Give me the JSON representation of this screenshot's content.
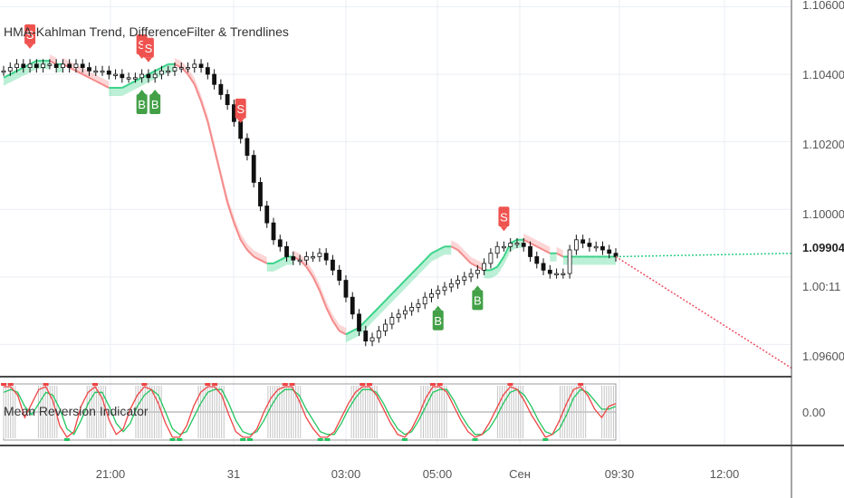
{
  "main_title": "HMA-Kahlman Trend, DifferenceFilter & Trendlines",
  "indicator_title": "Mean Reversion Indicator",
  "colors": {
    "bg": "#ffffff",
    "grid": "#e9eef3",
    "axis_border": "#4a4a4a",
    "candle": "#111111",
    "trend_red": "#f58a8a",
    "trend_green": "#3cd38a",
    "sell_badge": "#ef5350",
    "buy_badge": "#43a047",
    "proj_red": "#ee4f62",
    "proj_green": "#2fcf86",
    "ind_red": "#ef4444",
    "ind_green": "#22c55e",
    "ind_hist": "#c4c4c4"
  },
  "price_axis": {
    "ticks": [
      "1.10600",
      "1.10400",
      "1.10200",
      "1.10000",
      "1.09600"
    ],
    "last_price": "1.09904",
    "countdown": "1.00:11",
    "indicator_tick": "0.00"
  },
  "time_axis": {
    "labels": [
      "21:00",
      "31",
      "03:00",
      "05:00",
      "Сен",
      "09:30",
      "12:00"
    ]
  },
  "chart_data": {
    "type": "line",
    "title": "HMA-Kahlman Trend, DifferenceFilter & Trendlines",
    "ylim": [
      1.0955,
      1.1066
    ],
    "x_labels": [
      "21:00",
      "31",
      "03:00",
      "05:00",
      "Сен",
      "09:30",
      "12:00"
    ],
    "close": [
      1.1045,
      1.1046,
      1.1047,
      1.1046,
      1.1047,
      1.1046,
      1.1047,
      1.1047,
      1.1046,
      1.1047,
      1.1046,
      1.1047,
      1.1046,
      1.1045,
      1.1045,
      1.1045,
      1.1044,
      1.1044,
      1.1043,
      1.1043,
      1.1043,
      1.1044,
      1.1043,
      1.1044,
      1.1045,
      1.1045,
      1.1046,
      1.1046,
      1.1046,
      1.1047,
      1.1046,
      1.1044,
      1.1041,
      1.1038,
      1.1035,
      1.103,
      1.1025,
      1.102,
      1.1012,
      1.1005,
      1.1,
      1.0995,
      1.0993,
      1.099,
      1.0989,
      1.0989,
      1.099,
      1.099,
      1.0991,
      1.0989,
      1.0986,
      1.0983,
      1.0978,
      1.0973,
      1.0968,
      1.0965,
      1.0966,
      1.0968,
      1.097,
      1.0972,
      1.0973,
      1.0974,
      1.0975,
      1.0976,
      1.0978,
      1.0979,
      1.098,
      1.0981,
      1.0982,
      1.0983,
      1.0984,
      1.0985,
      1.0986,
      1.0988,
      1.0991,
      1.0993,
      1.0993,
      1.0994,
      1.0994,
      1.0993,
      1.099,
      1.0988,
      1.0986,
      1.0985,
      1.0985,
      1.0985,
      1.0992,
      1.0995,
      1.0994,
      1.0993,
      1.0993,
      1.0992,
      1.0991,
      1.099
    ],
    "series": [
      {
        "name": "HMA-Kahlman Trend",
        "values": [
          1.1043,
          1.1044,
          1.1045,
          1.1046,
          1.1047,
          1.1048,
          1.1048,
          1.1048,
          1.1047,
          1.1047,
          1.1046,
          1.1045,
          1.1044,
          1.1043,
          1.1042,
          1.1041,
          1.104,
          1.104,
          1.104,
          1.1041,
          1.1042,
          1.1043,
          1.1044,
          1.1045,
          1.1046,
          1.1047,
          1.1047,
          1.1046,
          1.1044,
          1.1041,
          1.1036,
          1.103,
          1.1022,
          1.1014,
          1.1006,
          1.1,
          1.0995,
          1.0992,
          1.099,
          1.0989,
          1.0988,
          1.0988,
          1.0989,
          1.099,
          1.099,
          1.0989,
          1.0987,
          1.0984,
          1.098,
          1.0975,
          1.0971,
          1.0968,
          1.0967,
          1.0968,
          1.0969,
          1.0971,
          1.0973,
          1.0975,
          1.0977,
          1.0979,
          1.0981,
          1.0983,
          1.0985,
          1.0987,
          1.0989,
          1.0991,
          1.0992,
          1.0993,
          1.0993,
          1.0992,
          1.099,
          1.0988,
          1.0987,
          1.0986,
          1.0986,
          1.0987,
          1.099,
          1.0994,
          1.0995,
          1.0995,
          1.0994,
          1.0993,
          1.0992,
          1.0991,
          1.0991,
          1.099,
          1.099,
          1.099,
          1.099,
          1.099,
          1.099,
          1.099,
          1.099,
          1.099
        ]
      }
    ],
    "projection": {
      "green": {
        "from": 1.099,
        "to": 1.0991
      },
      "red": {
        "from": 1.099,
        "to": 1.0957
      }
    },
    "signals": [
      {
        "label": "S",
        "bar": 4
      },
      {
        "label": "S",
        "bar": 21
      },
      {
        "label": "S",
        "bar": 22
      },
      {
        "label": "B",
        "bar": 21
      },
      {
        "label": "B",
        "bar": 23
      },
      {
        "label": "S",
        "bar": 36
      },
      {
        "label": "B",
        "bar": 66
      },
      {
        "label": "B",
        "bar": 72
      },
      {
        "label": "S",
        "bar": 76
      }
    ],
    "indicator": {
      "title": "Mean Reversion Indicator",
      "ylim": [
        -1,
        1
      ],
      "red": [
        0.9,
        0.9,
        0.6,
        -0.2,
        0.3,
        0.8,
        0.9,
        0.4,
        -0.5,
        -0.9,
        -0.7,
        0.2,
        0.7,
        0.9,
        0.5,
        -0.3,
        -0.8,
        -0.6,
        0.1,
        0.6,
        0.9,
        0.8,
        0.3,
        -0.4,
        -0.9,
        -0.9,
        -0.5,
        0.2,
        0.7,
        0.9,
        0.9,
        0.6,
        -0.1,
        -0.7,
        -0.9,
        -0.9,
        -0.6,
        0.0,
        0.5,
        0.8,
        0.9,
        0.9,
        0.4,
        -0.2,
        -0.6,
        -0.9,
        -0.9,
        -0.7,
        -0.2,
        0.3,
        0.7,
        0.9,
        0.9,
        0.6,
        0.1,
        -0.4,
        -0.8,
        -0.9,
        -0.6,
        -0.1,
        0.5,
        0.9,
        0.9,
        0.7,
        0.2,
        -0.3,
        -0.7,
        -0.9,
        -0.8,
        -0.4,
        0.1,
        0.6,
        0.9,
        0.8,
        0.4,
        -0.1,
        -0.5,
        -0.9,
        -0.8,
        -0.3,
        0.3,
        0.8,
        0.9,
        0.6,
        0.1,
        -0.2,
        0.2,
        0.3
      ],
      "green": [
        0.7,
        0.8,
        0.7,
        0.2,
        -0.1,
        0.3,
        0.7,
        0.6,
        0.1,
        -0.6,
        -0.8,
        -0.3,
        0.3,
        0.7,
        0.7,
        0.2,
        -0.4,
        -0.7,
        -0.4,
        0.2,
        0.6,
        0.8,
        0.6,
        0.0,
        -0.6,
        -0.8,
        -0.7,
        -0.2,
        0.3,
        0.7,
        0.8,
        0.8,
        0.3,
        -0.3,
        -0.7,
        -0.8,
        -0.7,
        -0.3,
        0.2,
        0.6,
        0.8,
        0.8,
        0.6,
        0.1,
        -0.3,
        -0.7,
        -0.8,
        -0.8,
        -0.4,
        0.1,
        0.5,
        0.8,
        0.8,
        0.7,
        0.3,
        -0.2,
        -0.6,
        -0.8,
        -0.7,
        -0.3,
        0.2,
        0.7,
        0.8,
        0.8,
        0.4,
        -0.1,
        -0.5,
        -0.8,
        -0.8,
        -0.6,
        -0.2,
        0.3,
        0.7,
        0.8,
        0.6,
        0.2,
        -0.3,
        -0.7,
        -0.8,
        -0.6,
        -0.1,
        0.5,
        0.8,
        0.7,
        0.4,
        0.1,
        0.1,
        0.2
      ],
      "histogram": [
        1,
        1,
        0,
        0,
        0,
        1,
        1,
        1,
        0,
        0,
        0,
        0,
        1,
        1,
        1,
        0,
        0,
        0,
        0,
        1,
        1,
        1,
        1,
        0,
        0,
        0,
        0,
        0,
        1,
        1,
        1,
        1,
        0,
        0,
        0,
        0,
        0,
        0,
        1,
        1,
        1,
        1,
        1,
        0,
        0,
        0,
        0,
        0,
        0,
        0,
        1,
        1,
        1,
        1,
        0,
        0,
        0,
        0,
        0,
        0,
        1,
        1,
        1,
        1,
        0,
        0,
        0,
        0,
        0,
        0,
        0,
        1,
        1,
        1,
        1,
        0,
        0,
        0,
        0,
        0,
        1,
        1,
        1,
        1,
        0,
        0,
        1,
        1
      ]
    }
  }
}
